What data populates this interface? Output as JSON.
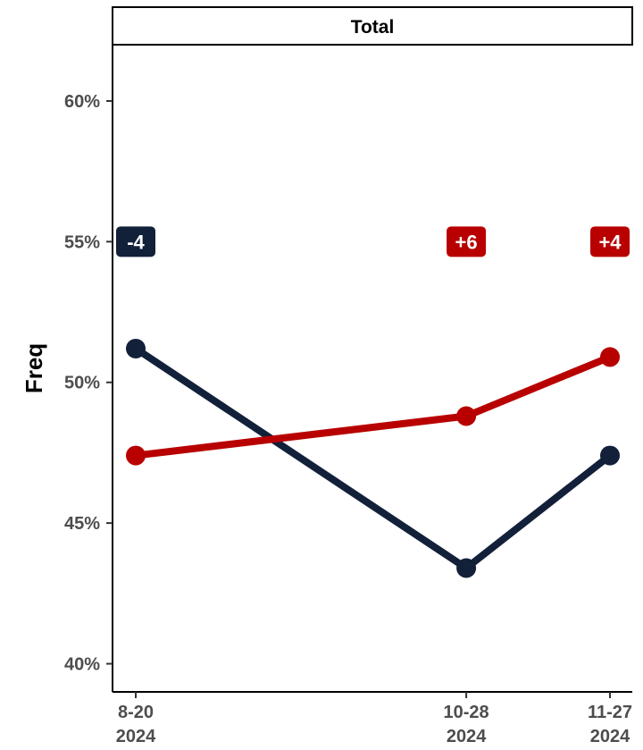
{
  "chart_data": {
    "type": "line",
    "title": "Total",
    "ylabel": "Freq",
    "xlabel": "",
    "ylim": [
      0.39,
      0.62
    ],
    "y_ticks": [
      0.4,
      0.45,
      0.5,
      0.55,
      0.6
    ],
    "y_tick_labels": [
      "40%",
      "45%",
      "50%",
      "55%",
      "60%"
    ],
    "x": [
      "2024-08-20",
      "2024-10-28",
      "2024-11-27"
    ],
    "x_tick_labels": [
      {
        "line1": "8-20",
        "line2": "2024"
      },
      {
        "line1": "10-28",
        "line2": "2024"
      },
      {
        "line1": "11-27",
        "line2": "2024"
      }
    ],
    "grid": false,
    "series": [
      {
        "color": "#12203a",
        "values": [
          0.512,
          0.434,
          0.474
        ]
      },
      {
        "color": "#b80000",
        "values": [
          0.474,
          0.488,
          0.509
        ]
      }
    ],
    "annotations": [
      {
        "x": "2024-08-20",
        "text": "-4",
        "color": "#12203a"
      },
      {
        "x": "2024-10-28",
        "text": "+6",
        "color": "#b80000"
      },
      {
        "x": "2024-11-27",
        "text": "+4",
        "color": "#b80000"
      }
    ]
  }
}
